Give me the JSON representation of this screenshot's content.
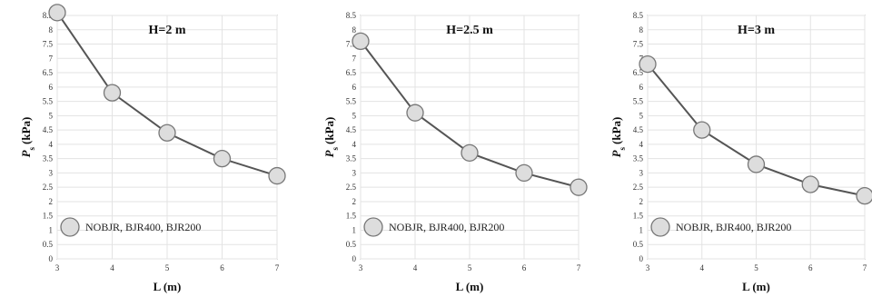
{
  "chart_data": [
    {
      "type": "line",
      "title": "H=2 m",
      "xlabel": "L (m)",
      "ylabel_main": "P",
      "ylabel_sub": "s",
      "ylabel_unit": "(kPa)",
      "x": [
        3,
        4,
        5,
        6,
        7
      ],
      "series": [
        {
          "name": "NOBJR, BJR400, BJR200",
          "values": [
            8.6,
            5.8,
            4.4,
            3.5,
            2.9
          ]
        }
      ],
      "xlim": [
        3,
        7
      ],
      "ylim": [
        0,
        8.5
      ],
      "xticks": [
        "3",
        "4",
        "5",
        "6",
        "7"
      ],
      "yticks": [
        "0",
        "0.5",
        "1",
        "1.5",
        "2",
        "2.5",
        "3",
        "3.5",
        "4",
        "4.5",
        "5",
        "5.5",
        "6",
        "6.5",
        "7",
        "7.5",
        "8",
        "8.5"
      ],
      "grid": true,
      "legend": "bottom"
    },
    {
      "type": "line",
      "title": "H=2.5 m",
      "xlabel": "L (m)",
      "ylabel_main": "P",
      "ylabel_sub": "s",
      "ylabel_unit": "(kPa)",
      "x": [
        3,
        4,
        5,
        6,
        7
      ],
      "series": [
        {
          "name": "NOBJR, BJR400, BJR200",
          "values": [
            7.6,
            5.1,
            3.7,
            3.0,
            2.5
          ]
        }
      ],
      "xlim": [
        3,
        7
      ],
      "ylim": [
        0,
        8.5
      ],
      "xticks": [
        "3",
        "4",
        "5",
        "6",
        "7"
      ],
      "yticks": [
        "0",
        "0.5",
        "1",
        "1.5",
        "2",
        "2.5",
        "3",
        "3.5",
        "4",
        "4.5",
        "5",
        "5.5",
        "6",
        "6.5",
        "7",
        "7.5",
        "8",
        "8.5"
      ],
      "grid": true,
      "legend": "bottom"
    },
    {
      "type": "line",
      "title": "H=3 m",
      "xlabel": "L (m)",
      "ylabel_main": "P",
      "ylabel_sub": "s",
      "ylabel_unit": "(kPa)",
      "x": [
        3,
        4,
        5,
        6,
        7
      ],
      "series": [
        {
          "name": "NOBJR, BJR400, BJR200",
          "values": [
            6.8,
            4.5,
            3.3,
            2.6,
            2.2
          ]
        }
      ],
      "xlim": [
        3,
        7
      ],
      "ylim": [
        0,
        8.5
      ],
      "xticks": [
        "3",
        "4",
        "5",
        "6",
        "7"
      ],
      "yticks": [
        "0",
        "0.5",
        "1",
        "1.5",
        "2",
        "2.5",
        "3",
        "3.5",
        "4",
        "4.5",
        "5",
        "5.5",
        "6",
        "6.5",
        "7",
        "7.5",
        "8",
        "8.5"
      ],
      "grid": true,
      "legend": "bottom"
    }
  ],
  "colors": {
    "line": "#555555",
    "marker_fill": "#dddddd",
    "marker_stroke": "#777777",
    "grid": "#e3e3e3",
    "axis": "#777777"
  }
}
